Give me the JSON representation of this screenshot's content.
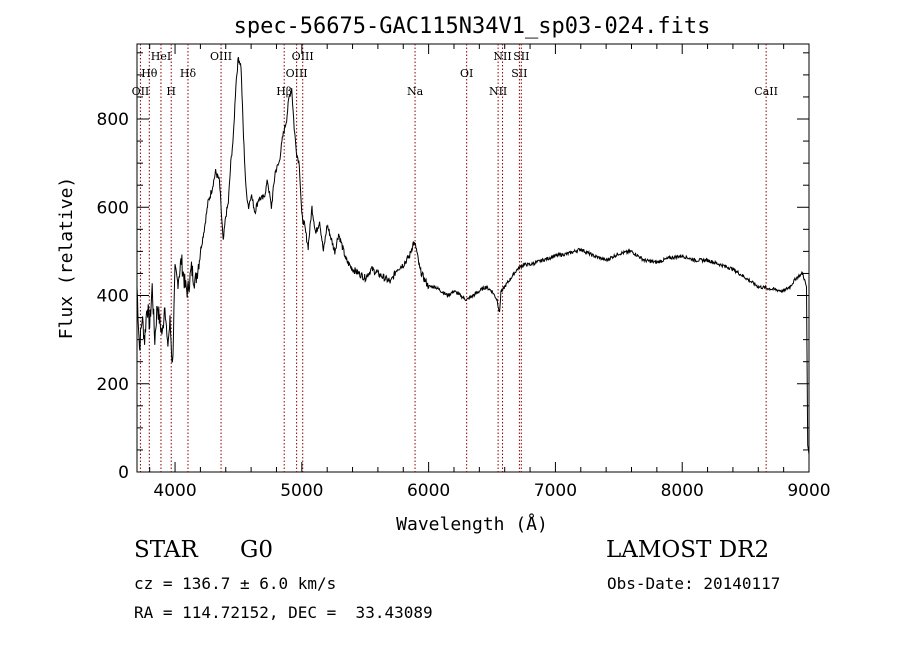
{
  "chart_data": {
    "type": "line",
    "title": "spec-56675-GAC115N34V1_sp03-024.fits",
    "xlabel": "Wavelength (Å)",
    "ylabel": "Flux (relative)",
    "xlim": [
      3700,
      9000
    ],
    "ylim": [
      0,
      970
    ],
    "grid": false,
    "line_color": "#000000",
    "marker_color": "#8b0000",
    "x_ticks": [
      4000,
      5000,
      6000,
      7000,
      8000,
      9000
    ],
    "y_ticks": [
      0,
      200,
      400,
      600,
      800
    ],
    "series": [
      {
        "x": [
          3700,
          3720,
          3740,
          3760,
          3780,
          3800,
          3820,
          3840,
          3860,
          3880,
          3900,
          3920,
          3940,
          3960,
          3980,
          4000,
          4020,
          4050,
          4080,
          4100,
          4130,
          4160,
          4200,
          4230,
          4260,
          4290,
          4320,
          4350,
          4380,
          4400,
          4420,
          4440,
          4460,
          4480,
          4500,
          4520,
          4540,
          4560,
          4580,
          4600,
          4630,
          4660,
          4700,
          4730,
          4760,
          4790,
          4820,
          4850,
          4880,
          4900,
          4920,
          4940,
          4960,
          4980,
          5000,
          5020,
          5050,
          5080,
          5110,
          5140,
          5170,
          5200,
          5230,
          5260,
          5290,
          5320,
          5350,
          5400,
          5450,
          5500,
          5550,
          5600,
          5650,
          5700,
          5750,
          5800,
          5850,
          5880,
          5900,
          5930,
          5960,
          6000,
          6050,
          6100,
          6150,
          6200,
          6250,
          6300,
          6350,
          6400,
          6450,
          6500,
          6540,
          6560,
          6570,
          6580,
          6600,
          6650,
          6700,
          6750,
          6800,
          6900,
          7000,
          7100,
          7200,
          7300,
          7400,
          7500,
          7600,
          7700,
          7800,
          7900,
          8000,
          8100,
          8200,
          8300,
          8400,
          8500,
          8600,
          8700,
          8800,
          8850,
          8900,
          8950,
          8980,
          8990,
          9000
        ],
        "y": [
          420,
          280,
          350,
          300,
          380,
          330,
          420,
          300,
          380,
          340,
          310,
          390,
          280,
          340,
          240,
          450,
          430,
          480,
          420,
          410,
          460,
          430,
          500,
          550,
          610,
          640,
          680,
          660,
          520,
          580,
          610,
          700,
          760,
          880,
          940,
          920,
          760,
          640,
          600,
          630,
          590,
          620,
          620,
          660,
          600,
          680,
          700,
          760,
          800,
          850,
          870,
          780,
          720,
          700,
          580,
          560,
          510,
          600,
          540,
          570,
          500,
          560,
          530,
          500,
          540,
          510,
          480,
          460,
          450,
          440,
          460,
          450,
          440,
          430,
          460,
          470,
          490,
          520,
          510,
          460,
          440,
          420,
          420,
          410,
          400,
          410,
          400,
          390,
          400,
          410,
          420,
          410,
          390,
          360,
          410,
          410,
          420,
          440,
          460,
          470,
          470,
          480,
          490,
          495,
          505,
          490,
          480,
          495,
          500,
          480,
          475,
          485,
          490,
          480,
          480,
          470,
          460,
          440,
          420,
          415,
          410,
          420,
          440,
          450,
          420,
          60,
          40
        ]
      }
    ],
    "lines": [
      {
        "name": "OII",
        "x": 3727,
        "row": 3
      },
      {
        "name": "Hθ",
        "x": 3797,
        "row": 2
      },
      {
        "name": "HeI",
        "x": 3889,
        "row": 1
      },
      {
        "name": "H",
        "x": 3970,
        "row": 3
      },
      {
        "name": "Hδ",
        "x": 4102,
        "row": 2
      },
      {
        "name": "OIII",
        "x": 4363,
        "row": 1
      },
      {
        "name": "Hβ",
        "x": 4861,
        "row": 3
      },
      {
        "name": "OIII",
        "x": 4959,
        "row": 2
      },
      {
        "name": "OIII",
        "x": 5007,
        "row": 1
      },
      {
        "name": "Na",
        "x": 5893,
        "row": 3
      },
      {
        "name": "OI",
        "x": 6300,
        "row": 2
      },
      {
        "name": "NII",
        "x": 6548,
        "row": 3
      },
      {
        "name": "NII",
        "x": 6583,
        "row": 1
      },
      {
        "name": "SII",
        "x": 6716,
        "row": 2
      },
      {
        "name": "SII",
        "x": 6731,
        "row": 1
      },
      {
        "name": "CaII",
        "x": 8662,
        "row": 3
      }
    ]
  },
  "info": {
    "class_text": "STAR",
    "subclass_text": "G0",
    "survey": "LAMOST DR2",
    "cz_text": "cz = 136.7 ± 6.0 km/s",
    "obs_date": "Obs-Date: 20140117",
    "radec_text": "RA = 114.72152, DEC =  33.43089"
  }
}
